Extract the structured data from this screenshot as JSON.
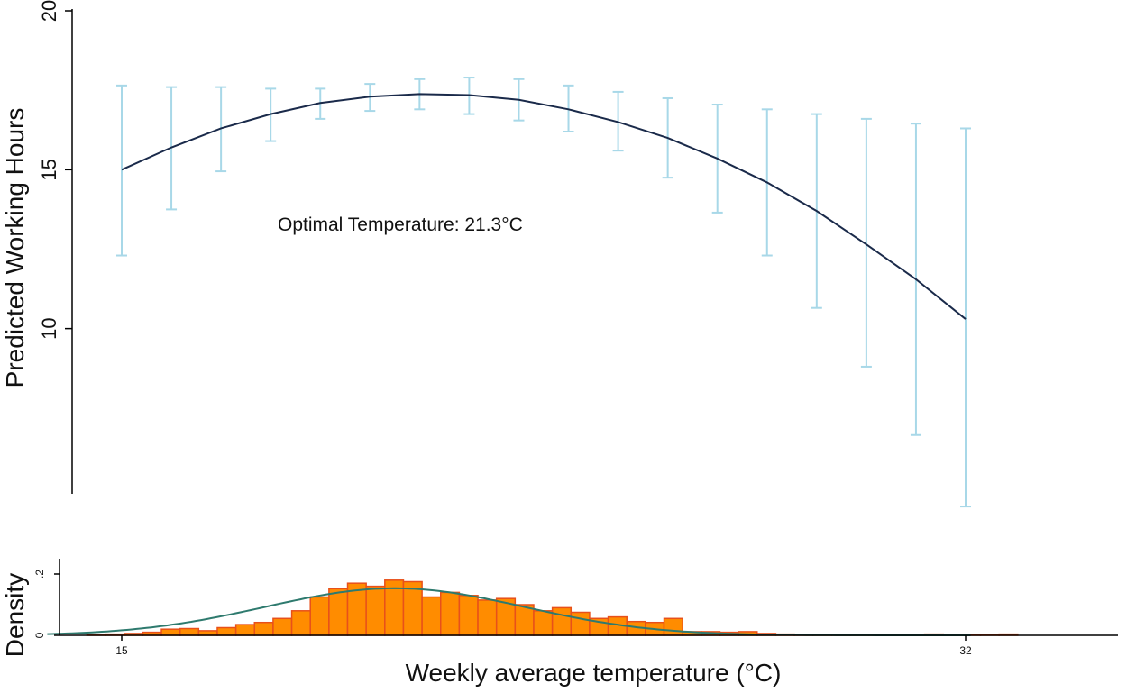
{
  "colors": {
    "line": "#1a2a4a",
    "ci": "#a8d8e8",
    "bar_fill": "#ff8c00",
    "bar_edge": "#e8501a",
    "density_curve": "#2e7a6e",
    "axis": "#000000"
  },
  "chart_data": [
    {
      "type": "line",
      "ylabel": "Predicted Working Hours",
      "ylim": [
        4.8,
        20
      ],
      "yticks": [
        10,
        15,
        20
      ],
      "ytick_labels": [
        "10",
        "15",
        "20"
      ],
      "xlim": [
        13.5,
        35
      ],
      "annotation": "Optimal Temperature: 21.3°C",
      "series": [
        {
          "x": [
            15,
            16,
            17,
            18,
            19,
            20,
            21,
            22,
            23,
            24,
            25,
            26,
            27,
            28,
            29,
            30,
            31,
            32
          ],
          "y": [
            15.0,
            15.7,
            16.3,
            16.75,
            17.1,
            17.3,
            17.38,
            17.35,
            17.2,
            16.9,
            16.5,
            16.0,
            15.35,
            14.6,
            13.7,
            12.65,
            11.55,
            10.3
          ],
          "lower": [
            12.3,
            13.75,
            14.95,
            15.9,
            16.6,
            16.85,
            16.9,
            16.75,
            16.55,
            16.2,
            15.6,
            14.75,
            13.65,
            12.3,
            10.65,
            8.8,
            6.65,
            4.4
          ],
          "upper": [
            17.65,
            17.6,
            17.6,
            17.55,
            17.55,
            17.7,
            17.85,
            17.9,
            17.85,
            17.65,
            17.45,
            17.25,
            17.05,
            16.9,
            16.75,
            16.6,
            16.45,
            16.3
          ]
        }
      ]
    },
    {
      "type": "bar",
      "ylabel": "Density",
      "xlabel": "Weekly average temperature (°C)",
      "xlim": [
        13.5,
        35
      ],
      "ylim": [
        0,
        0.25
      ],
      "yticks": [
        0,
        0.2
      ],
      "ytick_labels": [
        "0",
        ".2"
      ],
      "xticks": [
        15,
        32
      ],
      "xtick_labels": [
        "15",
        "32"
      ],
      "bin_start": 14.3,
      "bin_width": 0.375,
      "values": [
        0.002,
        0.004,
        0.006,
        0.01,
        0.02,
        0.022,
        0.015,
        0.025,
        0.035,
        0.042,
        0.055,
        0.08,
        0.125,
        0.152,
        0.17,
        0.16,
        0.18,
        0.175,
        0.125,
        0.14,
        0.13,
        0.115,
        0.12,
        0.1,
        0.08,
        0.09,
        0.075,
        0.055,
        0.06,
        0.045,
        0.042,
        0.055,
        0.012,
        0.012,
        0.01,
        0.012,
        0.006,
        0.004,
        0.002,
        0.002,
        0.002,
        0.002,
        0.002,
        0.002,
        0.002,
        0.004,
        0.002,
        0.002,
        0.002,
        0.004
      ],
      "density_curve": {
        "mean": 20.5,
        "sd": 2.6
      }
    }
  ]
}
